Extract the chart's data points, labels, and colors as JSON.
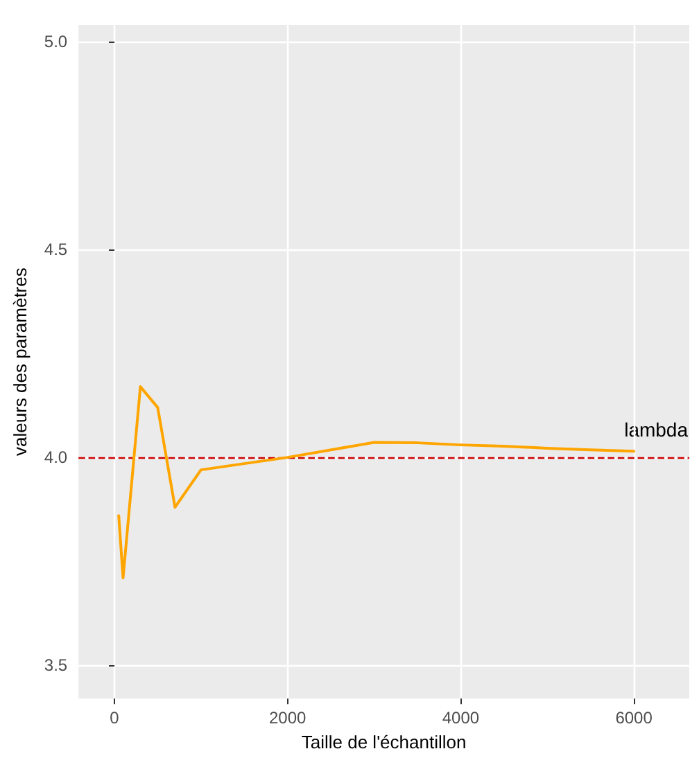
{
  "chart_data": {
    "type": "line",
    "xlabel": "Taille de l'échantillon",
    "ylabel": "valeurs des paramètres",
    "x": [
      50,
      100,
      300,
      500,
      700,
      1000,
      2000,
      3000,
      3500,
      4000,
      4500,
      5000,
      5500,
      6000
    ],
    "series": [
      {
        "color": "#ffa500",
        "values": [
          3.86,
          3.71,
          4.17,
          4.12,
          3.88,
          3.97,
          4.0,
          4.036,
          4.035,
          4.03,
          4.027,
          4.022,
          4.018,
          4.015
        ]
      }
    ],
    "xlim": [
      -415,
      6640
    ],
    "ylim": [
      3.42,
      5.04
    ],
    "xticks": [
      0,
      2000,
      4000,
      6000
    ],
    "yticks": [
      3.5,
      {
        "value": 4,
        "label": "4.0"
      },
      4.5,
      {
        "value": 5,
        "label": "5.0"
      }
    ],
    "ref_lines": [
      {
        "axis": "y",
        "value": 4.0,
        "color": "#cc0000",
        "line_style": "dashed"
      }
    ],
    "annotations": [
      "lambda"
    ],
    "grid": true,
    "marker": "none",
    "line_style": "solid"
  }
}
